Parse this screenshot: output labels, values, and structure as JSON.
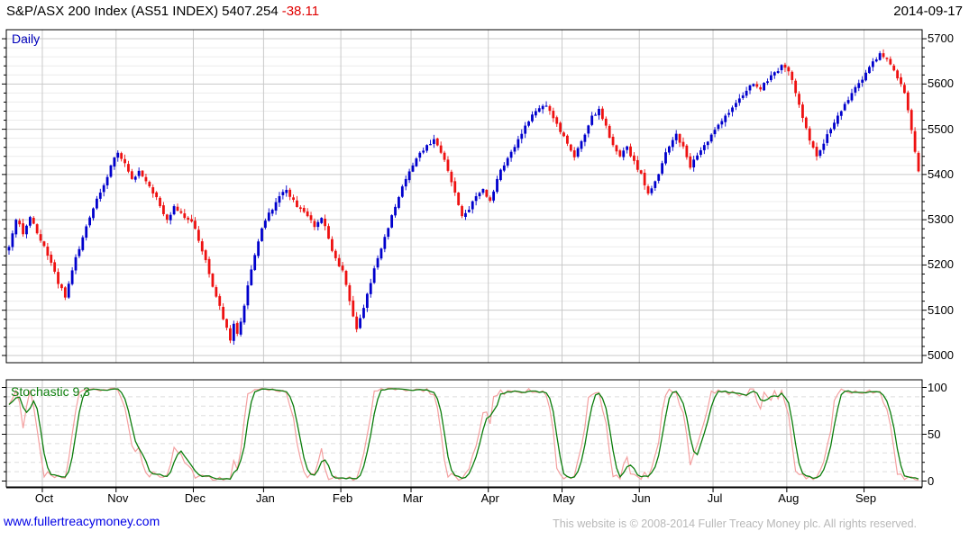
{
  "header": {
    "instrument": "S&P/ASX 200 Index (AS51 INDEX)",
    "last": "5407.254",
    "change": "-38.11",
    "date": "2014-09-17"
  },
  "price_panel": {
    "timeframe_label": "Daily"
  },
  "stoch_panel": {
    "label": "Stochastic 9,3"
  },
  "footer": {
    "link": "www.fullertreacymoney.com",
    "copyright": "This website is © 2008-2014 Fuller Treacy Money plc. All rights reserved."
  },
  "colors": {
    "up_candle": "#0000cc",
    "down_candle": "#ee1111",
    "stoch_k_line": "#f4a0a0",
    "stoch_d_line": "#0b7d0b",
    "grid_major": "#c9c9c9",
    "grid_minor": "#ececec",
    "grid_dashed": "#dedede",
    "axis": "#000000",
    "title_change": "#e00000",
    "timeframe": "#0000bb",
    "link": "#0000e6",
    "copyright": "#b8b8b8"
  },
  "chart_data": {
    "type": "candlestick_with_stochastic",
    "title": "S&P/ASX 200 Index (AS51 INDEX)",
    "timeframe": "Daily",
    "last_close": 5407.254,
    "change": -38.11,
    "as_of_date": "2014-09-17",
    "indicator": {
      "name": "Stochastic",
      "k_period": 9,
      "d_period": 3
    },
    "price_axis": {
      "min": 5000,
      "max": 5700,
      "major_step": 100,
      "minor_step": 20,
      "tick_values": [
        5700,
        5600,
        5500,
        5400,
        5300,
        5200,
        5100,
        5000
      ]
    },
    "stoch_axis": {
      "min": 0,
      "max": 100,
      "tick_values": [
        100,
        50,
        0
      ],
      "dashed_step": 10
    },
    "months": [
      "Oct",
      "Nov",
      "Dec",
      "Jan",
      "Feb",
      "Mar",
      "Apr",
      "May",
      "Jun",
      "Jul",
      "Aug",
      "Sep"
    ],
    "month_start_days": [
      10,
      31,
      53,
      73,
      95,
      115,
      137,
      158,
      180,
      201,
      222,
      244
    ],
    "total_days": 260,
    "close_anchors": [
      [
        0,
        5240
      ],
      [
        2,
        5300
      ],
      [
        4,
        5268
      ],
      [
        6,
        5306
      ],
      [
        8,
        5270
      ],
      [
        10,
        5242
      ],
      [
        12,
        5205
      ],
      [
        14,
        5158
      ],
      [
        16,
        5128
      ],
      [
        18,
        5188
      ],
      [
        20,
        5235
      ],
      [
        23,
        5305
      ],
      [
        26,
        5360
      ],
      [
        29,
        5420
      ],
      [
        31,
        5448
      ],
      [
        33,
        5425
      ],
      [
        35,
        5390
      ],
      [
        37,
        5408
      ],
      [
        39,
        5385
      ],
      [
        41,
        5358
      ],
      [
        43,
        5330
      ],
      [
        45,
        5300
      ],
      [
        47,
        5330
      ],
      [
        49,
        5315
      ],
      [
        51,
        5300
      ],
      [
        53,
        5280
      ],
      [
        55,
        5230
      ],
      [
        57,
        5180
      ],
      [
        59,
        5130
      ],
      [
        61,
        5080
      ],
      [
        63,
        5033
      ],
      [
        64,
        5070
      ],
      [
        65,
        5048
      ],
      [
        67,
        5110
      ],
      [
        69,
        5190
      ],
      [
        71,
        5252
      ],
      [
        73,
        5298
      ],
      [
        75,
        5322
      ],
      [
        77,
        5352
      ],
      [
        79,
        5366
      ],
      [
        81,
        5344
      ],
      [
        83,
        5324
      ],
      [
        85,
        5308
      ],
      [
        87,
        5284
      ],
      [
        89,
        5304
      ],
      [
        91,
        5258
      ],
      [
        93,
        5215
      ],
      [
        95,
        5188
      ],
      [
        97,
        5120
      ],
      [
        99,
        5058
      ],
      [
        101,
        5105
      ],
      [
        103,
        5160
      ],
      [
        105,
        5215
      ],
      [
        107,
        5262
      ],
      [
        109,
        5310
      ],
      [
        111,
        5350
      ],
      [
        113,
        5390
      ],
      [
        115,
        5420
      ],
      [
        117,
        5448
      ],
      [
        119,
        5465
      ],
      [
        121,
        5478
      ],
      [
        123,
        5448
      ],
      [
        125,
        5408
      ],
      [
        127,
        5360
      ],
      [
        129,
        5308
      ],
      [
        131,
        5322
      ],
      [
        133,
        5352
      ],
      [
        135,
        5368
      ],
      [
        137,
        5342
      ],
      [
        139,
        5390
      ],
      [
        141,
        5420
      ],
      [
        143,
        5450
      ],
      [
        145,
        5478
      ],
      [
        147,
        5508
      ],
      [
        150,
        5540
      ],
      [
        153,
        5552
      ],
      [
        156,
        5512
      ],
      [
        159,
        5468
      ],
      [
        161,
        5438
      ],
      [
        164,
        5488
      ],
      [
        166,
        5530
      ],
      [
        168,
        5545
      ],
      [
        170,
        5508
      ],
      [
        172,
        5465
      ],
      [
        174,
        5440
      ],
      [
        176,
        5462
      ],
      [
        178,
        5430
      ],
      [
        180,
        5402
      ],
      [
        182,
        5358
      ],
      [
        184,
        5385
      ],
      [
        186,
        5425
      ],
      [
        188,
        5462
      ],
      [
        190,
        5490
      ],
      [
        192,
        5462
      ],
      [
        194,
        5415
      ],
      [
        196,
        5442
      ],
      [
        198,
        5465
      ],
      [
        200,
        5488
      ],
      [
        202,
        5510
      ],
      [
        204,
        5530
      ],
      [
        206,
        5548
      ],
      [
        208,
        5568
      ],
      [
        210,
        5585
      ],
      [
        212,
        5600
      ],
      [
        214,
        5588
      ],
      [
        216,
        5606
      ],
      [
        218,
        5626
      ],
      [
        220,
        5642
      ],
      [
        222,
        5628
      ],
      [
        224,
        5580
      ],
      [
        226,
        5525
      ],
      [
        228,
        5475
      ],
      [
        230,
        5440
      ],
      [
        232,
        5468
      ],
      [
        234,
        5500
      ],
      [
        236,
        5530
      ],
      [
        238,
        5556
      ],
      [
        240,
        5580
      ],
      [
        242,
        5602
      ],
      [
        244,
        5625
      ],
      [
        246,
        5650
      ],
      [
        248,
        5668
      ],
      [
        250,
        5655
      ],
      [
        252,
        5630
      ],
      [
        254,
        5600
      ],
      [
        255,
        5580
      ],
      [
        256,
        5542
      ],
      [
        257,
        5498
      ],
      [
        258,
        5450
      ],
      [
        259,
        5407
      ]
    ]
  }
}
